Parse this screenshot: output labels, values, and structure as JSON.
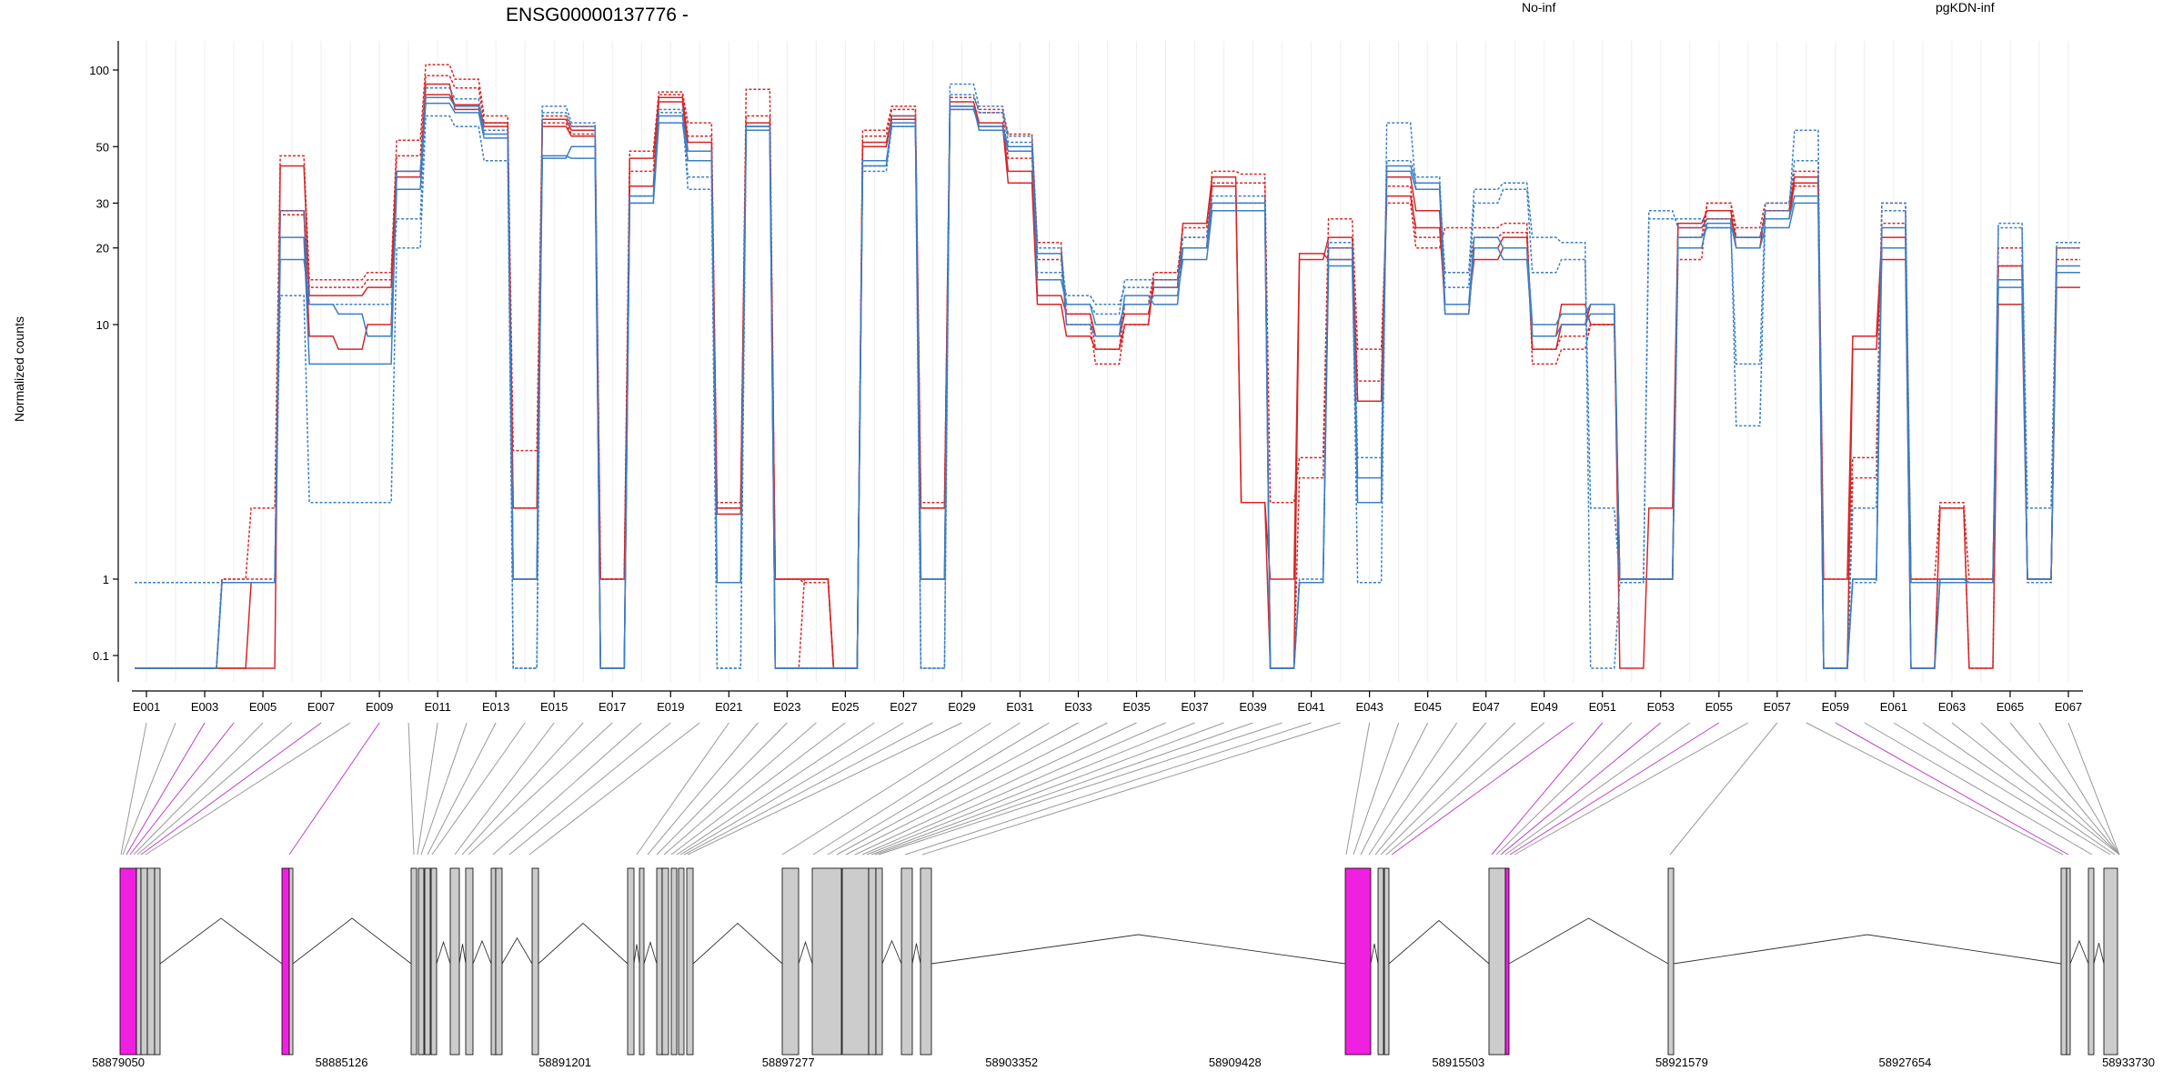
{
  "chart_data": {
    "type": "line",
    "title": "ENSG00000137776 -",
    "ylabel": "Normalized counts",
    "y_scale": "log",
    "y_ticks": [
      0.1,
      1,
      10,
      20,
      30,
      50,
      100
    ],
    "y_tick_labels": [
      "0.1",
      "1",
      "10",
      "20",
      "30",
      "50",
      "100"
    ],
    "grid": "vertical-only",
    "legend": [
      {
        "name": "No-inf",
        "color": "#d62728",
        "placement": "top-right"
      },
      {
        "name": "pgKDN-inf",
        "color": "#3b7fc4",
        "placement": "top-right"
      }
    ],
    "x_labels_shown": [
      "E001",
      "E003",
      "E005",
      "E007",
      "E009",
      "E011",
      "E013",
      "E015",
      "E017",
      "E019",
      "E021",
      "E023",
      "E025",
      "E027",
      "E029",
      "E031",
      "E033",
      "E035",
      "E037",
      "E039",
      "E041",
      "E043",
      "E045",
      "E047",
      "E049",
      "E051",
      "E053",
      "E055",
      "E057",
      "E059",
      "E061",
      "E063",
      "E065",
      "E067"
    ],
    "series": [
      {
        "group": "No-inf",
        "color": "#d62728",
        "dashed": false,
        "values": [
          0.07,
          0.07,
          0.07,
          0.07,
          0.9,
          28,
          9,
          8,
          10,
          38,
          88,
          70,
          62,
          1.9,
          60,
          55,
          1,
          35,
          75,
          48,
          1.9,
          62,
          1,
          1,
          0.07,
          50,
          66,
          1.9,
          72,
          60,
          36,
          12,
          9,
          8,
          10,
          15,
          20,
          35,
          2,
          1,
          19,
          18,
          5,
          32,
          24,
          12,
          18,
          20,
          8,
          10,
          12,
          0.07,
          1.9,
          24,
          26,
          22,
          26,
          36,
          0.07,
          8,
          18,
          0.07,
          1.9,
          0.07,
          12,
          1,
          14
        ]
      },
      {
        "group": "No-inf",
        "color": "#d62728",
        "dashed": false,
        "values": [
          0.07,
          0.07,
          0.07,
          0.07,
          0.07,
          42,
          13,
          13,
          14,
          40,
          80,
          73,
          60,
          1,
          64,
          58,
          0.07,
          45,
          78,
          52,
          1.8,
          60,
          1,
          1,
          0.07,
          52,
          64,
          1,
          75,
          62,
          40,
          13,
          11,
          9,
          11,
          14,
          25,
          38,
          2,
          0.07,
          18,
          22,
          5,
          38,
          28,
          11,
          20,
          22,
          9,
          12,
          10,
          1,
          1,
          25,
          28,
          20,
          28,
          38,
          1,
          9,
          22,
          1,
          1,
          1,
          17,
          1,
          16
        ]
      },
      {
        "group": "No-inf",
        "color": "#d62728",
        "dashed": true,
        "values": [
          0.07,
          0.07,
          0.07,
          1,
          1.9,
          46,
          15,
          15,
          16,
          53,
          105,
          92,
          66,
          3.2,
          66,
          60,
          1,
          48,
          82,
          62,
          2,
          84,
          1,
          0.9,
          0.07,
          58,
          72,
          2,
          78,
          70,
          56,
          21,
          10,
          7,
          10,
          16,
          22,
          40,
          39,
          2,
          3,
          26,
          8,
          30,
          20,
          24,
          24,
          25,
          7,
          8,
          10,
          1,
          1,
          18,
          30,
          24,
          30,
          40,
          1,
          3,
          30,
          1,
          2,
          1,
          20,
          1,
          20
        ]
      },
      {
        "group": "No-inf",
        "color": "#d62728",
        "dashed": true,
        "values": [
          0.07,
          0.07,
          0.07,
          1,
          1,
          27,
          14,
          14,
          15,
          46,
          95,
          85,
          62,
          1.9,
          62,
          56,
          1,
          40,
          80,
          55,
          1.9,
          66,
          0.07,
          1,
          0.07,
          55,
          70,
          1.9,
          70,
          68,
          45,
          18,
          11,
          8,
          12,
          16,
          24,
          36,
          36,
          0.07,
          2.5,
          20,
          6,
          35,
          22,
          16,
          22,
          23,
          8,
          9,
          10,
          1,
          1,
          22,
          30,
          22,
          28,
          35,
          0.07,
          2.5,
          25,
          0.07,
          1.9,
          0.07,
          17,
          1,
          18
        ]
      },
      {
        "group": "pgKDN-inf",
        "color": "#3b7fc4",
        "dashed": false,
        "values": [
          0.07,
          0.07,
          0.07,
          0.9,
          0.9,
          22,
          7,
          7,
          7,
          40,
          74,
          68,
          54,
          1,
          45,
          50,
          0.07,
          32,
          66,
          48,
          0.9,
          60,
          0.07,
          0.07,
          0.07,
          44,
          60,
          1,
          70,
          60,
          50,
          15,
          12,
          10,
          12,
          13,
          18,
          28,
          28,
          0.07,
          0.9,
          18,
          2.5,
          40,
          34,
          12,
          22,
          20,
          10,
          11,
          12,
          1,
          1,
          22,
          24,
          22,
          26,
          32,
          0.07,
          1,
          24,
          0.07,
          1,
          0.9,
          15,
          1,
          17
        ]
      },
      {
        "group": "pgKDN-inf",
        "color": "#3b7fc4",
        "dashed": false,
        "values": [
          0.07,
          0.07,
          0.07,
          0.9,
          0.9,
          18,
          12,
          11,
          9,
          34,
          78,
          72,
          56,
          1,
          46,
          45,
          0.07,
          30,
          62,
          44,
          0.9,
          58,
          0.07,
          0.07,
          0.07,
          42,
          62,
          1,
          72,
          58,
          48,
          19,
          10,
          9,
          13,
          12,
          20,
          30,
          30,
          0.07,
          0.9,
          17,
          2,
          42,
          36,
          11,
          20,
          18,
          9,
          10,
          11,
          1,
          1,
          20,
          25,
          20,
          24,
          30,
          0.07,
          1,
          20,
          0.07,
          1,
          0.9,
          14,
          1,
          16
        ]
      },
      {
        "group": "pgKDN-inf",
        "color": "#3b7fc4",
        "dashed": true,
        "values": [
          0.9,
          0.9,
          0.9,
          0.9,
          0.9,
          13,
          2,
          2,
          2,
          20,
          66,
          60,
          44,
          0.07,
          72,
          62,
          0.07,
          30,
          70,
          34,
          0.07,
          58,
          0.07,
          0.07,
          0.07,
          40,
          60,
          0.07,
          88,
          72,
          52,
          16,
          13,
          12,
          14,
          14,
          20,
          30,
          30,
          0.07,
          0.9,
          20,
          0.9,
          62,
          34,
          16,
          34,
          36,
          22,
          21,
          0.07,
          0.9,
          28,
          24,
          26,
          4,
          28,
          58,
          0.07,
          0.9,
          30,
          0.9,
          0.9,
          0.9,
          25,
          0.9,
          21
        ]
      },
      {
        "group": "pgKDN-inf",
        "color": "#3b7fc4",
        "dashed": true,
        "values": [
          0.07,
          0.07,
          0.07,
          0.9,
          0.9,
          28,
          12,
          12,
          12,
          26,
          85,
          77,
          58,
          0.07,
          68,
          60,
          0.07,
          32,
          68,
          38,
          0.07,
          60,
          0.07,
          0.07,
          0.07,
          42,
          66,
          0.07,
          80,
          68,
          55,
          20,
          12,
          11,
          15,
          15,
          22,
          32,
          32,
          0.07,
          1,
          21,
          3,
          44,
          38,
          14,
          30,
          34,
          16,
          18,
          1.9,
          0.9,
          26,
          26,
          24,
          7,
          30,
          44,
          0.07,
          1.9,
          28,
          0.9,
          0.9,
          0.9,
          24,
          1.9,
          20
        ]
      }
    ],
    "genomic_coordinates": [
      "58879050",
      "58885126",
      "58891201",
      "58897277",
      "58903352",
      "58909428",
      "58915503",
      "58921579",
      "58927654",
      "58933730"
    ],
    "gene_model": {
      "exon_color": "#cccccc",
      "highlight_color": "#f020e0",
      "connector_color_default": "#999999",
      "connector_color_highlight": "#c040c8"
    }
  }
}
